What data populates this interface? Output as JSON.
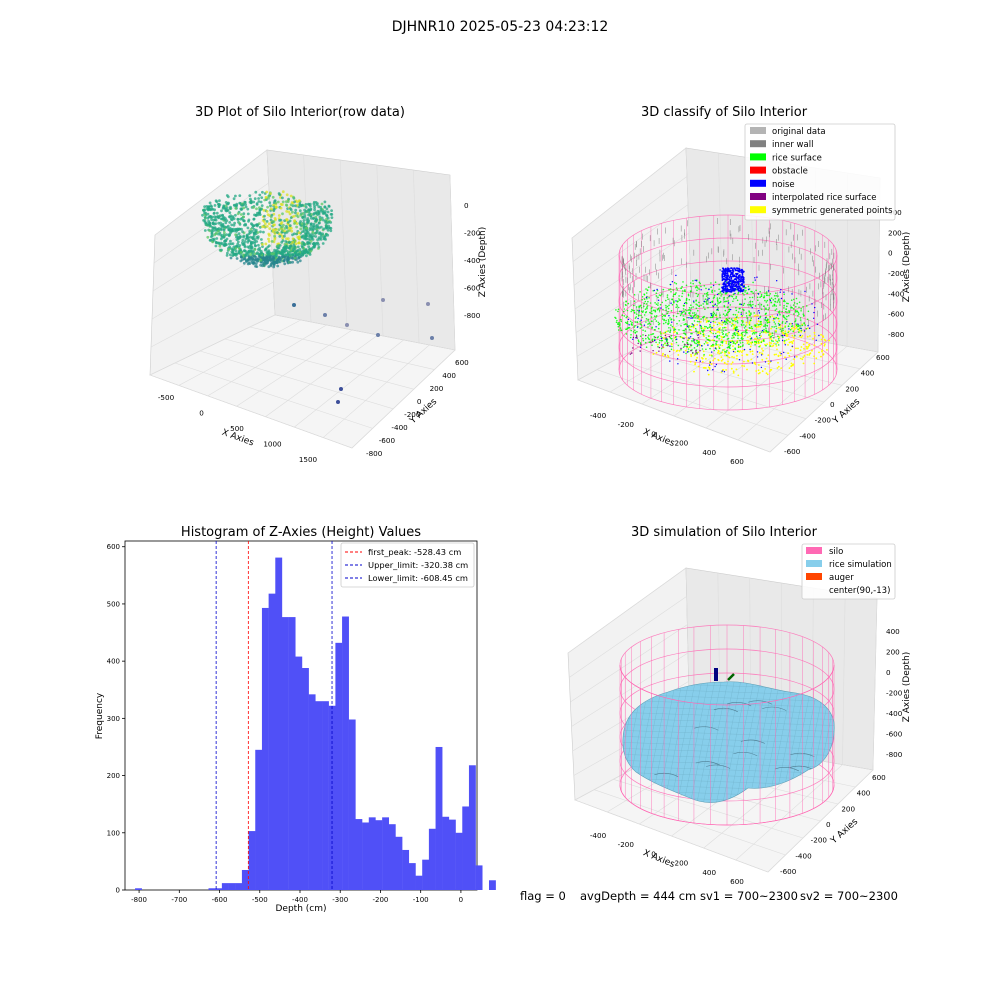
{
  "figure": {
    "suptitle": "DJHNR10 2025-05-23 04:23:12",
    "status_line": {
      "flag": "flag = 0",
      "avg_depth": "avgDepth = 444 cm",
      "sv1": "sv1 = 700~2300",
      "sv2": "sv2 = 700~2300"
    }
  },
  "colors": {
    "background": "#ffffff",
    "pane_left": "#f2f2f2",
    "pane_right": "#e9e9e9",
    "pane_floor": "#f5f5f5",
    "grid": "#dddddd",
    "hist_bar": "#5050f7",
    "first_peak": "#ff0000",
    "limits": "#0000cc",
    "original_data": "#b4b4b4",
    "inner_wall": "#808080",
    "rice_surface": "#00ff00",
    "obstacle": "#ff0000",
    "noise": "#0000ff",
    "interpolated": "#800080",
    "symmetric": "#ffff00",
    "silo": "#ff69b4",
    "rice_simulation": "#87ceeb",
    "auger": "#ff4500",
    "viridis_low": "#2d4f8b",
    "viridis_mid": "#23a884",
    "viridis_high": "#d9e020"
  },
  "chart_data": [
    {
      "type": "scatter",
      "kind": "scatter3d",
      "title": "3D Plot of Silo Interior(row data)",
      "xlabel": "X Axies",
      "ylabel": "Y Axies",
      "zlabel": "Z Axies (Depth)",
      "x_ticks": [
        "-500",
        "0",
        "500",
        "1000",
        "1500"
      ],
      "y_ticks": [
        "-800",
        "-600",
        "-400",
        "-200",
        "0",
        "200",
        "400",
        "600"
      ],
      "z_ticks": [
        "-800",
        "-600",
        "-400",
        "-200",
        "0"
      ],
      "xlim": [
        -650,
        1850
      ],
      "ylim": [
        -850,
        700
      ],
      "zlim": [
        -900,
        50
      ],
      "main_cloud": "dense point cloud in the region x -550 to 700, y -650 to 650, z -650 to -100",
      "outliers": [
        {
          "x": 1250,
          "y": 330,
          "z": -560
        },
        {
          "x": 1500,
          "y": 200,
          "z": -560
        },
        {
          "x": 450,
          "y": -150,
          "z": -610
        },
        {
          "x": 750,
          "y": -250,
          "z": -700
        },
        {
          "x": 1100,
          "y": -300,
          "z": -760
        },
        {
          "x": 1700,
          "y": -150,
          "z": -810
        },
        {
          "x": 1000,
          "y": -500,
          "z": -780
        },
        {
          "x": 1200,
          "y": -700,
          "z": -850
        },
        {
          "x": 1300,
          "y": -800,
          "z": -770
        }
      ],
      "grid": true
    },
    {
      "type": "scatter",
      "kind": "scatter3d",
      "title": "3D classify of Silo Interior",
      "xlabel": "X Axies",
      "ylabel": "Y Axies",
      "zlabel": "Z Axies (Depth)",
      "x_ticks": [
        "-400",
        "-200",
        "0",
        "200",
        "400",
        "600"
      ],
      "y_ticks": [
        "-600",
        "-400",
        "-200",
        "0",
        "200",
        "400",
        "600"
      ],
      "z_ticks": [
        "-800",
        "-600",
        "-400",
        "-200",
        "0",
        "200",
        "400"
      ],
      "xlim": [
        -550,
        750
      ],
      "ylim": [
        -700,
        700
      ],
      "zlim": [
        -900,
        450
      ],
      "legend": [
        "original data",
        "inner wall",
        "rice surface",
        "obstacle",
        "noise",
        "interpolated rice surface",
        "symmetric generated points"
      ],
      "legend_loc": "upper-right",
      "grid": true
    },
    {
      "type": "bar",
      "kind": "histogram",
      "title": "Histogram of Z-Axies (Height) Values",
      "xlabel": "Depth (cm)",
      "ylabel": "Frequency",
      "x_ticks": [
        "-800",
        "-700",
        "-600",
        "-500",
        "-400",
        "-300",
        "-200",
        "-100",
        "0"
      ],
      "y_ticks": [
        "0",
        "100",
        "200",
        "300",
        "400",
        "500",
        "600"
      ],
      "xlim": [
        -835,
        40
      ],
      "ylim": [
        0,
        610
      ],
      "bin_start": -810,
      "bin_width": 16.6,
      "counts": [
        3,
        0,
        0,
        0,
        0,
        0,
        0,
        0,
        0,
        0,
        0,
        3,
        3,
        12,
        12,
        12,
        35,
        103,
        245,
        493,
        518,
        581,
        477,
        477,
        408,
        388,
        342,
        330,
        330,
        322,
        432,
        478,
        298,
        124,
        118,
        127,
        122,
        127,
        115,
        93,
        70,
        47,
        25,
        53,
        107,
        250,
        128,
        123,
        100,
        146,
        218,
        43,
        0,
        17
      ],
      "lines": [
        {
          "label": "first_peak: -528.43 cm",
          "x": -528.43,
          "color": "#ff0000"
        },
        {
          "label": "Upper_limit: -320.38 cm",
          "x": -320.38,
          "color": "#0000cc"
        },
        {
          "label": "Lower_limit: -608.45 cm",
          "x": -608.45,
          "color": "#0000cc"
        }
      ],
      "legend_loc": "upper-right",
      "grid": false
    },
    {
      "type": "area",
      "kind": "surface3d",
      "title": "3D simulation of Silo Interior",
      "xlabel": "X Axies",
      "ylabel": "Y Axies",
      "zlabel": "Z Axies (Depth)",
      "x_ticks": [
        "-400",
        "-200",
        "0",
        "200",
        "400",
        "600"
      ],
      "y_ticks": [
        "-600",
        "-400",
        "-200",
        "0",
        "200",
        "400",
        "600"
      ],
      "z_ticks": [
        "-800",
        "-600",
        "-400",
        "-200",
        "0",
        "200",
        "400"
      ],
      "xlim": [
        -550,
        750
      ],
      "ylim": [
        -700,
        700
      ],
      "zlim": [
        -900,
        450
      ],
      "legend": [
        "silo",
        "rice simulation",
        "auger",
        "center(90,-13)"
      ],
      "legend_loc": "upper-right",
      "grid": true
    }
  ]
}
